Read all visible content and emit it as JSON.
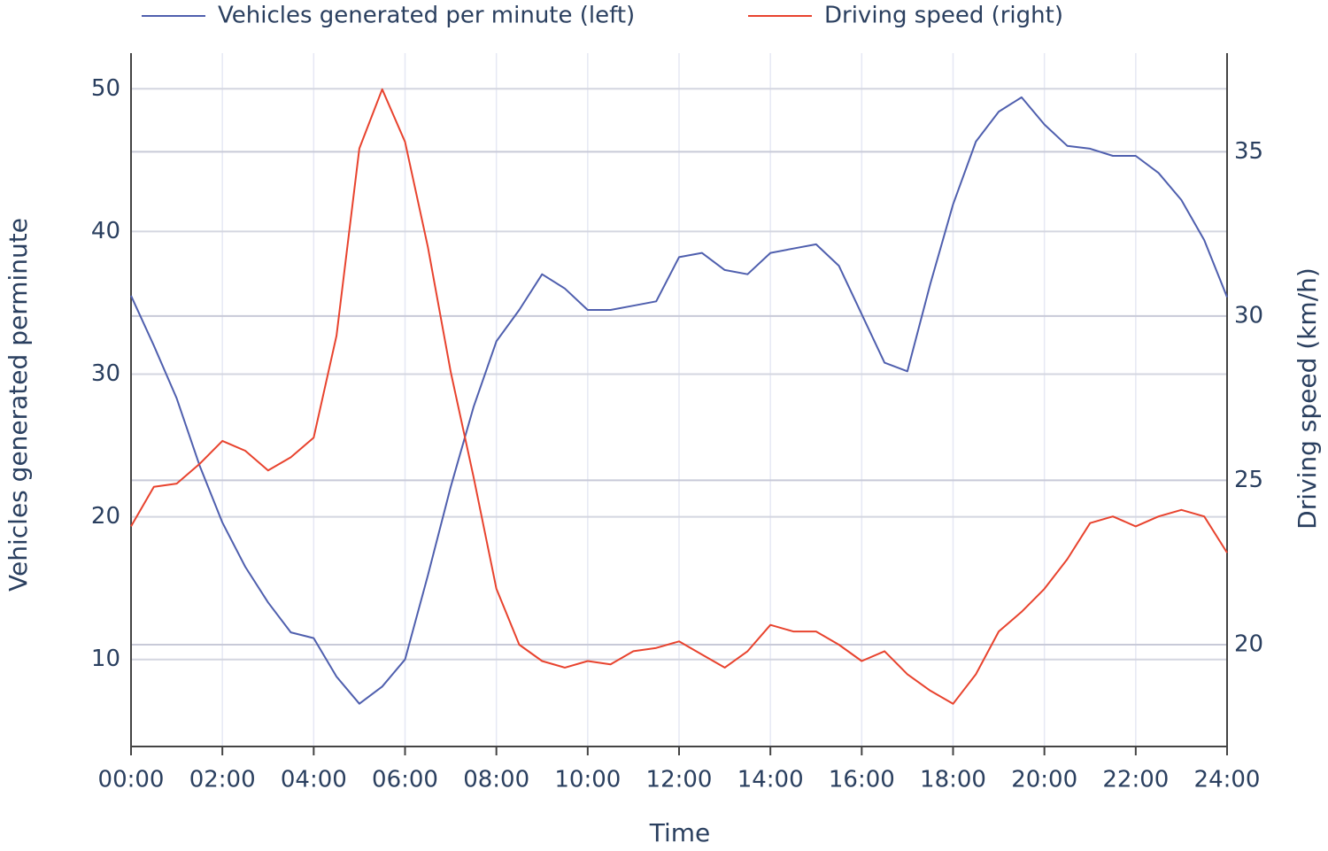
{
  "chart_data": {
    "type": "line",
    "xlabel": "Time",
    "ylabel": "Vehicles generated perminute",
    "y2label": "Driving speed (km/h)",
    "x": [
      0,
      0.5,
      1,
      1.5,
      2,
      2.5,
      3,
      3.5,
      4,
      4.5,
      5,
      5.5,
      6,
      6.5,
      7,
      7.5,
      8,
      8.5,
      9,
      9.5,
      10,
      10.5,
      11,
      11.5,
      12,
      12.5,
      13,
      13.5,
      14,
      14.5,
      15,
      15.5,
      16,
      16.5,
      17,
      17.5,
      18,
      18.5,
      19,
      19.5,
      20,
      20.5,
      21,
      21.5,
      22,
      22.5,
      23,
      23.5,
      24
    ],
    "series": [
      {
        "name": "Vehicles generated per minute (left)",
        "color": "#4f5fae",
        "axis": "y",
        "values": [
          35.5,
          32,
          28.3,
          23.6,
          19.6,
          16.5,
          14,
          11.9,
          11.5,
          8.8,
          6.9,
          8.1,
          10,
          15.9,
          22.1,
          27.7,
          32.3,
          34.5,
          37,
          36,
          34.5,
          34.5,
          34.8,
          35.1,
          38.2,
          38.5,
          37.3,
          37,
          38.5,
          38.8,
          39.1,
          37.6,
          34.2,
          30.8,
          30.2,
          36.3,
          41.9,
          46.3,
          48.4,
          49.4,
          47.5,
          46,
          45.8,
          45.3,
          45.3,
          44.1,
          42.2,
          39.4,
          35.4
        ]
      },
      {
        "name": "Driving speed (right)",
        "color": "#e8432e",
        "axis": "y2",
        "values": [
          23.6,
          24.8,
          24.9,
          25.5,
          26.2,
          25.9,
          25.3,
          25.7,
          26.3,
          29.4,
          35.1,
          36.9,
          35.3,
          32.1,
          28.3,
          25.1,
          21.7,
          20,
          19.5,
          19.3,
          19.5,
          19.4,
          19.8,
          19.9,
          20.1,
          19.7,
          19.3,
          19.8,
          20.6,
          20.4,
          20.4,
          20,
          19.5,
          19.8,
          19.1,
          18.6,
          18.2,
          19.1,
          20.4,
          21,
          21.7,
          22.6,
          23.7,
          23.9,
          23.6,
          23.9,
          24.1,
          23.9,
          22.8
        ]
      }
    ],
    "xlim": [
      0,
      24
    ],
    "xticks": [
      {
        "value": 0,
        "label": "00:00"
      },
      {
        "value": 2,
        "label": "02:00"
      },
      {
        "value": 4,
        "label": "04:00"
      },
      {
        "value": 6,
        "label": "06:00"
      },
      {
        "value": 8,
        "label": "08:00"
      },
      {
        "value": 10,
        "label": "10:00"
      },
      {
        "value": 12,
        "label": "12:00"
      },
      {
        "value": 14,
        "label": "14:00"
      },
      {
        "value": 16,
        "label": "16:00"
      },
      {
        "value": 18,
        "label": "18:00"
      },
      {
        "value": 20,
        "label": "20:00"
      },
      {
        "value": 22,
        "label": "22:00"
      },
      {
        "value": 24,
        "label": "24:00"
      }
    ],
    "ylim": [
      3.9,
      52.5
    ],
    "yticks": [
      10,
      20,
      30,
      40,
      50
    ],
    "y2lim": [
      16.9,
      38
    ],
    "y2ticks": [
      20,
      25,
      30,
      35
    ],
    "grid": true,
    "legend": "top"
  }
}
